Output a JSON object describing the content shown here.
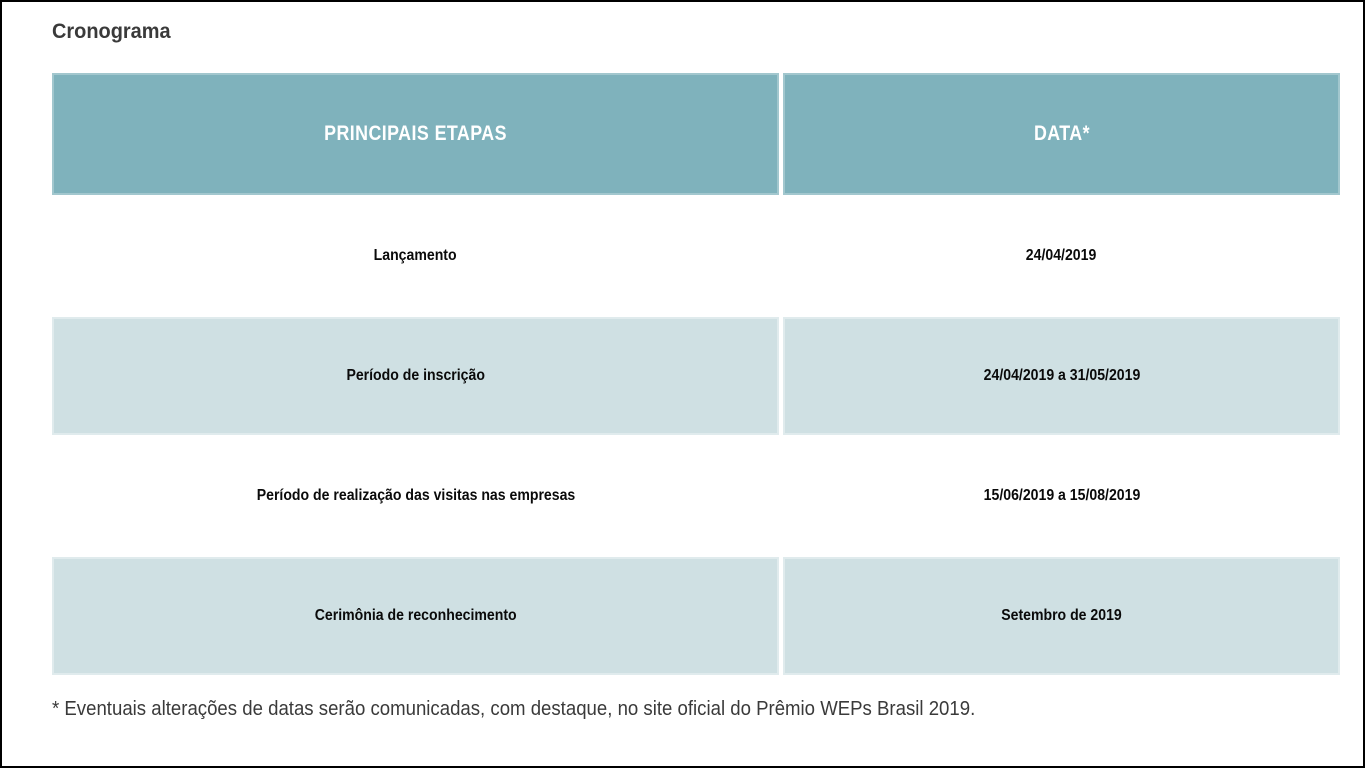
{
  "page": {
    "title": "Cronograma",
    "footnote": "* Eventuais alterações de datas serão comunicadas, com destaque, no site oficial do Prêmio WEPs Brasil 2019."
  },
  "colors": {
    "frame_border": "#000000",
    "header_bg": "#7fb2bc",
    "alt_row_bg": "#cfe0e3",
    "row_bg": "#ffffff",
    "header_text": "#ffffff",
    "cell_text": "#0a0a0a",
    "title_text": "#3a3a3a",
    "footnote_text": "#3a3a3a"
  },
  "table": {
    "columns": [
      {
        "label": "PRINCIPAIS ETAPAS"
      },
      {
        "label": "DATA*"
      }
    ],
    "rows": [
      {
        "etapa": "Lançamento",
        "data": "24/04/2019"
      },
      {
        "etapa": "Período de inscrição",
        "data": "24/04/2019 a 31/05/2019"
      },
      {
        "etapa": "Período de realização das visitas nas empresas",
        "data": "15/06/2019 a 15/08/2019"
      },
      {
        "etapa": "Cerimônia de reconhecimento",
        "data": "Setembro de 2019"
      }
    ]
  }
}
